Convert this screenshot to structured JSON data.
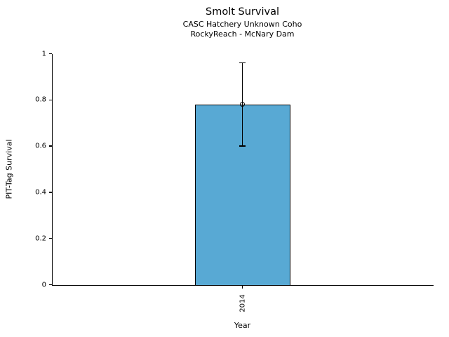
{
  "chart_data": {
    "type": "bar",
    "title": "Smolt Survival",
    "subtitle": [
      "CASC Hatchery Unknown Coho",
      "RockyReach - McNary Dam"
    ],
    "xlabel": "Year",
    "ylabel": "PIT-Tag Survival",
    "categories": [
      "2014"
    ],
    "values": [
      0.78
    ],
    "error_bars": [
      {
        "low": 0.6,
        "high": 0.96
      }
    ],
    "ylim": [
      0,
      1
    ],
    "yticks": [
      0,
      0.2,
      0.4,
      0.6,
      0.8,
      1
    ],
    "ytick_labels": [
      "0",
      "0.2",
      "0.4",
      "0.6",
      "0.8",
      "1"
    ],
    "grid": false,
    "legend": null,
    "bar_color": "#58A9D4",
    "bar_edge_color": "#000000",
    "marker": "open-circle",
    "background_color": "#ffffff"
  }
}
